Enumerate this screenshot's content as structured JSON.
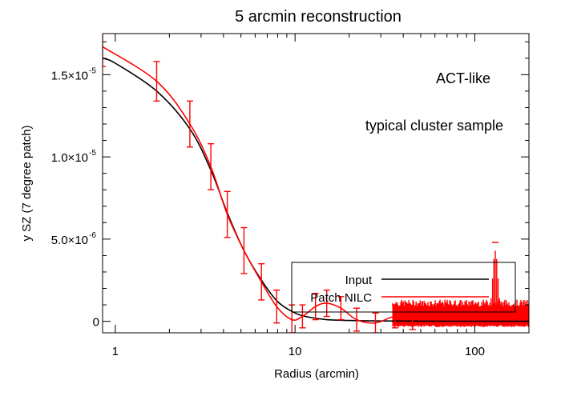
{
  "chart_data": {
    "type": "line",
    "title": "5 arcmin reconstruction",
    "xlabel": "Radius (arcmin)",
    "ylabel": "y SZ (7 degree patch)",
    "xscale": "log",
    "xlim": [
      0.85,
      200
    ],
    "ylim": [
      -7e-07,
      1.75e-05
    ],
    "xticks": [
      {
        "value": 1,
        "label": "1"
      },
      {
        "value": 10,
        "label": "10"
      },
      {
        "value": 100,
        "label": "100"
      }
    ],
    "yticks": [
      {
        "value": 0,
        "mantissa": "0",
        "exp": ""
      },
      {
        "value": 5e-06,
        "mantissa": "5.0×10",
        "exp": "-6"
      },
      {
        "value": 1e-05,
        "mantissa": "1.0×10",
        "exp": "-5"
      },
      {
        "value": 1.5e-05,
        "mantissa": "1.5×10",
        "exp": "-5"
      }
    ],
    "annotations": [
      "ACT-like",
      "typical cluster sample"
    ],
    "legend": {
      "position": "bottom-right",
      "entries": [
        {
          "label": "Input",
          "color": "#000000"
        },
        {
          "label": "Patch NILC",
          "color": "#ff0000"
        }
      ]
    },
    "series": [
      {
        "name": "Input",
        "color": "#000000",
        "x": [
          0.85,
          1.0,
          1.7,
          2.6,
          3.4,
          4.2,
          5.2,
          6.5,
          8.0,
          10.0,
          12.0,
          15.0,
          20.0,
          30.0,
          50.0,
          100.0,
          200.0
        ],
        "y": [
          1.6e-05,
          1.57e-05,
          1.4e-05,
          1.17e-05,
          9.2e-06,
          6.6e-06,
          4.3e-06,
          2.5e-06,
          1.2e-06,
          5e-07,
          2.5e-07,
          1e-07,
          5e-08,
          2e-08,
          1e-08,
          5e-09,
          0
        ]
      },
      {
        "name": "Patch NILC",
        "color": "#ff0000",
        "x": [
          0.85,
          1.7,
          2.6,
          3.4,
          4.2,
          5.2,
          6.5,
          7.9,
          9.6,
          11.0,
          13.0,
          15.0,
          18.0,
          22.0,
          28.0,
          36.0,
          45.0
        ],
        "y": [
          1.67e-05,
          1.46e-05,
          1.2e-05,
          9.4e-06,
          6.5e-06,
          4.3e-06,
          2.4e-06,
          9e-07,
          1e-07,
          3e-07,
          9e-07,
          1.1e-06,
          8e-07,
          1e-07,
          -1e-07,
          3e-07,
          1e-07
        ],
        "err": [
          1.2e-06,
          1.2e-06,
          1.4e-06,
          1.4e-06,
          1.4e-06,
          1.4e-06,
          1.1e-06,
          1e-06,
          9e-07,
          7e-07,
          8e-07,
          8e-07,
          7e-07,
          7e-07,
          6e-07,
          7e-07,
          6e-07
        ]
      }
    ],
    "noise_region": {
      "x_start": 35,
      "x_end": 200,
      "y_low": -3e-07,
      "y_high": 1.2e-06,
      "peak_x": 130,
      "peak_y": 4.3e-06,
      "peak_err": 5e-07
    }
  }
}
